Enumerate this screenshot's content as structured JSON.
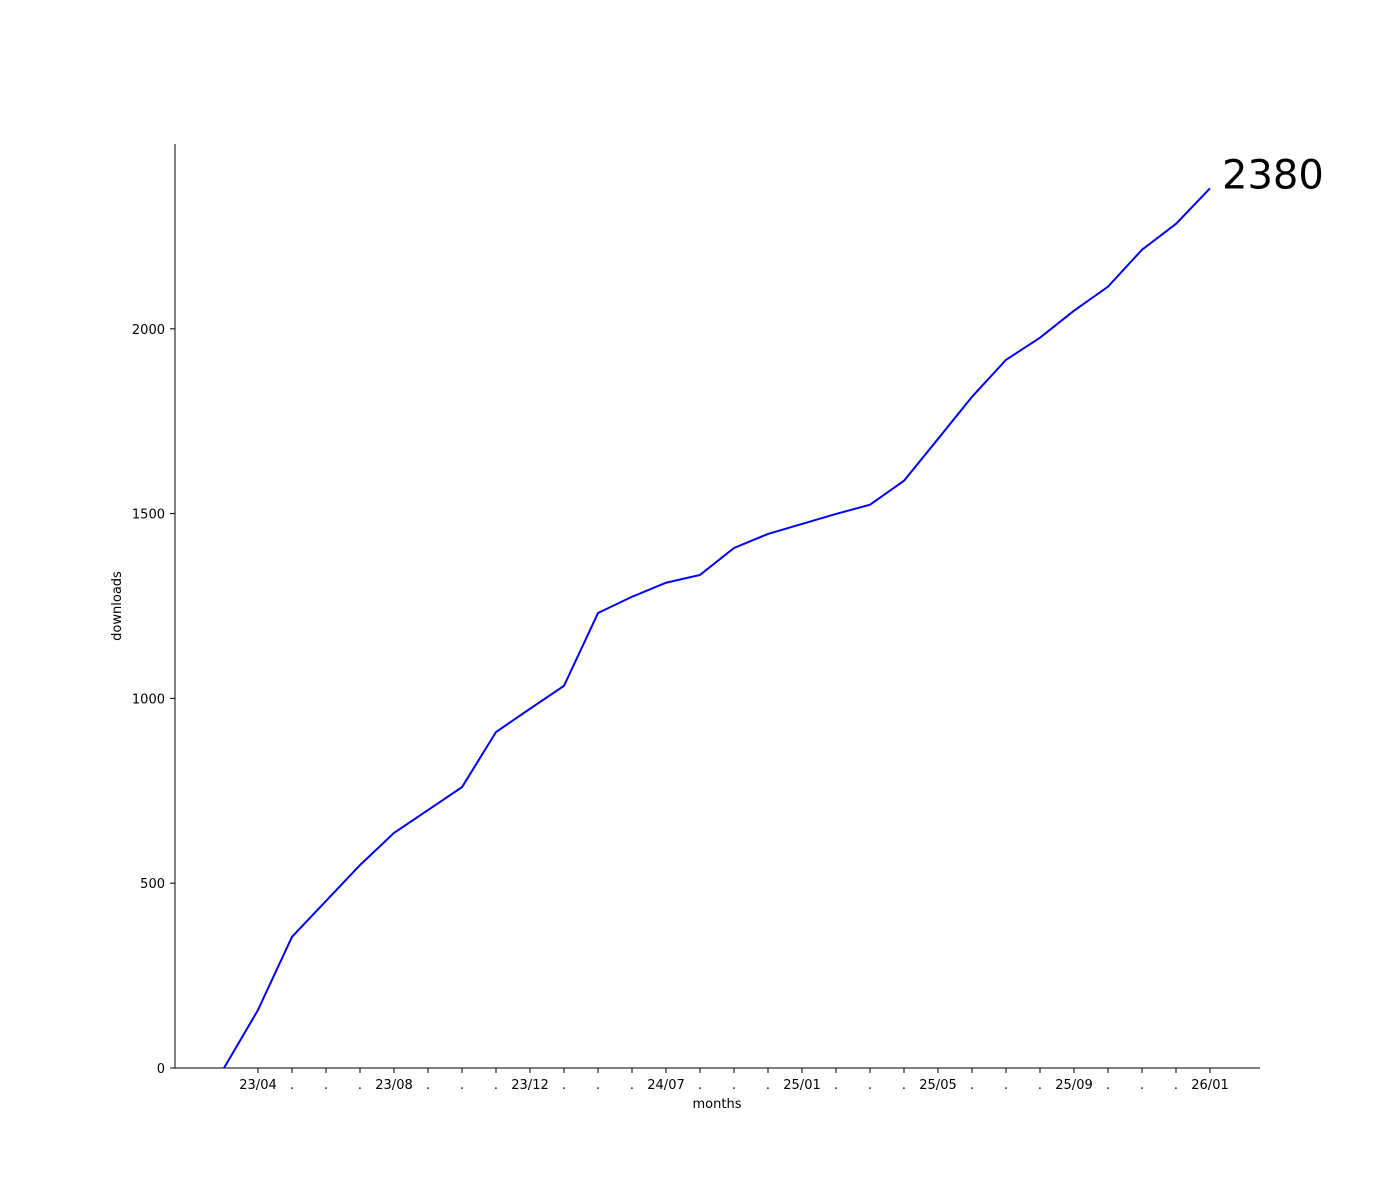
{
  "chart_data": {
    "type": "line",
    "xlabel": "months",
    "ylabel": "downloads",
    "categories": [
      null,
      "23/04",
      ".",
      ".",
      ".",
      "23/08",
      ".",
      ".",
      ".",
      "23/12",
      ".",
      ".",
      ".",
      "24/07",
      ".",
      ".",
      ".",
      "25/01",
      ".",
      ".",
      ".",
      "25/05",
      ".",
      ".",
      ".",
      "25/09",
      ".",
      ".",
      ".",
      "26/01"
    ],
    "series": [
      {
        "name": "downloads",
        "color": "#0000ff",
        "values": [
          0,
          157,
          355,
          452,
          549,
          636,
          698,
          760,
          909,
          972,
          1034,
          1231,
          1275,
          1313,
          1334,
          1407,
          1445,
          1472,
          1499,
          1524,
          1589,
          1702,
          1816,
          1916,
          1976,
          2049,
          2114,
          2214,
          2284,
          2380
        ]
      }
    ],
    "ylim": [
      0,
      2500
    ],
    "yticks": [
      0,
      500,
      1000,
      1500,
      2000
    ],
    "grid": false
  }
}
